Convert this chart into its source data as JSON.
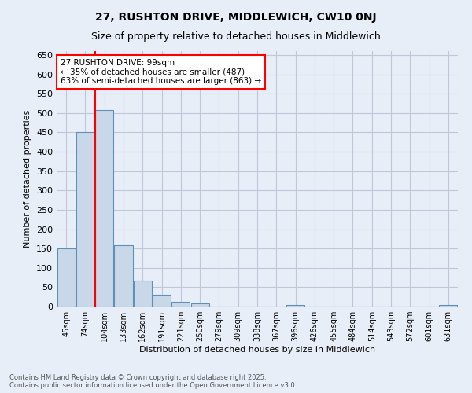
{
  "title": "27, RUSHTON DRIVE, MIDDLEWICH, CW10 0NJ",
  "subtitle": "Size of property relative to detached houses in Middlewich",
  "xlabel": "Distribution of detached houses by size in Middlewich",
  "ylabel": "Number of detached properties",
  "categories": [
    "45sqm",
    "74sqm",
    "104sqm",
    "133sqm",
    "162sqm",
    "191sqm",
    "221sqm",
    "250sqm",
    "279sqm",
    "309sqm",
    "338sqm",
    "367sqm",
    "396sqm",
    "426sqm",
    "455sqm",
    "484sqm",
    "514sqm",
    "543sqm",
    "572sqm",
    "601sqm",
    "631sqm"
  ],
  "values": [
    150,
    450,
    507,
    158,
    67,
    30,
    13,
    8,
    0,
    0,
    0,
    0,
    5,
    0,
    0,
    0,
    0,
    0,
    0,
    0,
    5
  ],
  "bar_color": "#c8d8e8",
  "bar_edge_color": "#6090b8",
  "grid_color": "#c0c8d8",
  "background_color": "#e8eef8",
  "vline_color": "red",
  "vline_pos": 1.5,
  "annotation_text": "27 RUSHTON DRIVE: 99sqm\n← 35% of detached houses are smaller (487)\n63% of semi-detached houses are larger (863) →",
  "annotation_box_color": "white",
  "annotation_box_edge_color": "red",
  "footer": "Contains HM Land Registry data © Crown copyright and database right 2025.\nContains public sector information licensed under the Open Government Licence v3.0.",
  "ylim": [
    0,
    660
  ],
  "yticks": [
    0,
    50,
    100,
    150,
    200,
    250,
    300,
    350,
    400,
    450,
    500,
    550,
    600,
    650
  ],
  "title_fontsize": 10,
  "subtitle_fontsize": 9,
  "xlabel_fontsize": 8,
  "ylabel_fontsize": 8,
  "tick_fontsize": 7,
  "annotation_fontsize": 7.5
}
